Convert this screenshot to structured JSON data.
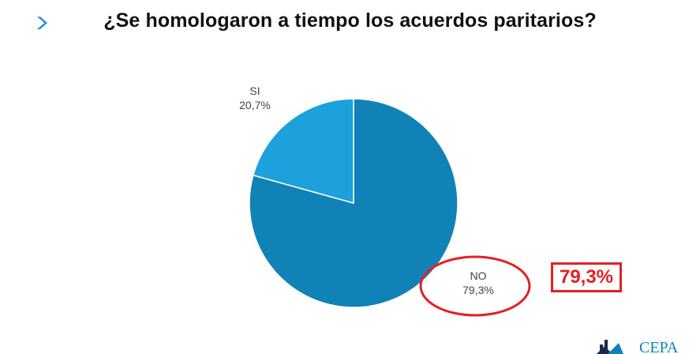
{
  "title": "¿Se homologaron a tiempo los acuerdos paritarios?",
  "header_icon": "chevron-right-icon",
  "colors": {
    "si": "#1da1dc",
    "no": "#1182b5",
    "highlight": "#e32026",
    "accent": "#3a8fd8"
  },
  "chart_data": {
    "type": "pie",
    "title": "¿Se homologaron a tiempo los acuerdos paritarios?",
    "slices": [
      {
        "label": "SI",
        "value": 20.7,
        "value_label": "20,7%",
        "color": "#1da1dc"
      },
      {
        "label": "NO",
        "value": 79.3,
        "value_label": "79,3%",
        "color": "#1182b5"
      }
    ],
    "legend": "none"
  },
  "highlight": {
    "text": "79,3%"
  },
  "logo": {
    "icon": "cepa-logo-icon",
    "text": "CEPA"
  }
}
